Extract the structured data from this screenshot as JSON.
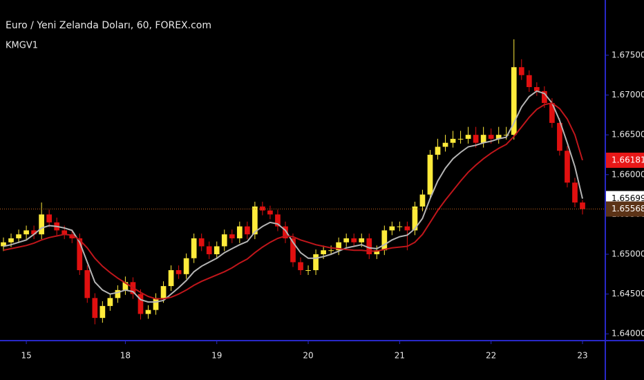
{
  "chart_data": {
    "type": "candlestick",
    "title": "Euro / Yeni Zelanda Doları, 60, FOREX.com",
    "indicator": "KMGV1",
    "categories": [
      null,
      null,
      null,
      "15",
      null,
      null,
      null,
      null,
      null,
      null,
      null,
      null,
      null,
      null,
      null,
      null,
      "18",
      null,
      null,
      null,
      null,
      null,
      null,
      null,
      null,
      null,
      null,
      null,
      "19",
      null,
      null,
      null,
      null,
      null,
      null,
      null,
      null,
      null,
      null,
      null,
      "20",
      null,
      null,
      null,
      null,
      null,
      null,
      null,
      null,
      null,
      null,
      null,
      "21",
      null,
      null,
      null,
      null,
      null,
      null,
      null,
      null,
      null,
      null,
      null,
      "22",
      null,
      null,
      null,
      null,
      null,
      null,
      null,
      null,
      null,
      null,
      null,
      "23"
    ],
    "open": [
      1.651,
      1.6515,
      1.652,
      1.6525,
      1.653,
      1.6525,
      1.655,
      1.654,
      1.653,
      1.6525,
      1.652,
      1.648,
      1.6445,
      1.642,
      1.6435,
      1.6445,
      1.6455,
      1.6465,
      1.645,
      1.6425,
      1.643,
      1.6445,
      1.646,
      1.648,
      1.6475,
      1.6495,
      1.652,
      1.651,
      1.65,
      1.651,
      1.6525,
      1.652,
      1.6535,
      1.6525,
      1.656,
      1.6555,
      1.655,
      1.6535,
      1.652,
      1.649,
      1.648,
      1.648,
      1.65,
      1.6505,
      1.6505,
      1.6515,
      1.652,
      1.6515,
      1.652,
      1.65,
      1.6505,
      1.653,
      1.6535,
      1.6535,
      1.653,
      1.656,
      1.6575,
      1.6625,
      1.6635,
      1.664,
      1.6645,
      1.6645,
      1.665,
      1.664,
      1.665,
      1.6645,
      1.665,
      1.665,
      1.6735,
      1.6725,
      1.671,
      1.6705,
      1.669,
      1.6665,
      1.663,
      1.659,
      1.6565
    ],
    "high": [
      1.6521,
      1.6526,
      1.6531,
      1.6536,
      1.6536,
      1.6565,
      1.6556,
      1.6546,
      1.6536,
      1.6531,
      1.6526,
      1.6486,
      1.6451,
      1.6441,
      1.6451,
      1.6461,
      1.6472,
      1.6471,
      1.6456,
      1.6436,
      1.6451,
      1.6466,
      1.6486,
      1.6486,
      1.6501,
      1.6526,
      1.6526,
      1.6516,
      1.6516,
      1.6531,
      1.6531,
      1.6541,
      1.6541,
      1.6566,
      1.6566,
      1.6561,
      1.6556,
      1.6541,
      1.6526,
      1.6496,
      1.6486,
      1.6506,
      1.6511,
      1.6511,
      1.6521,
      1.6526,
      1.6526,
      1.6526,
      1.6526,
      1.6511,
      1.6536,
      1.6541,
      1.6541,
      1.6541,
      1.6566,
      1.6581,
      1.6631,
      1.6645,
      1.665,
      1.6655,
      1.6655,
      1.666,
      1.666,
      1.666,
      1.6658,
      1.666,
      1.666,
      1.677,
      1.6745,
      1.6731,
      1.6716,
      1.6711,
      1.6696,
      1.6671,
      1.6636,
      1.6596,
      1.6568
    ],
    "low": [
      1.6504,
      1.6509,
      1.6514,
      1.6519,
      1.6519,
      1.6519,
      1.6534,
      1.6524,
      1.6519,
      1.6514,
      1.6474,
      1.6439,
      1.6412,
      1.6414,
      1.6429,
      1.6439,
      1.6449,
      1.6444,
      1.6418,
      1.6419,
      1.6424,
      1.6439,
      1.6454,
      1.6469,
      1.6469,
      1.6489,
      1.6504,
      1.6494,
      1.6494,
      1.6504,
      1.6514,
      1.6514,
      1.6519,
      1.6519,
      1.6549,
      1.6544,
      1.6529,
      1.6514,
      1.6484,
      1.6474,
      1.6474,
      1.6474,
      1.6494,
      1.6499,
      1.6499,
      1.6509,
      1.6509,
      1.6509,
      1.6494,
      1.6494,
      1.6499,
      1.6524,
      1.6529,
      1.6505,
      1.6524,
      1.6554,
      1.6569,
      1.6619,
      1.6629,
      1.6634,
      1.6639,
      1.6639,
      1.6634,
      1.6634,
      1.6639,
      1.6639,
      1.6644,
      1.6644,
      1.6719,
      1.6704,
      1.6699,
      1.6684,
      1.6659,
      1.6624,
      1.6584,
      1.6559,
      1.655
    ],
    "close": [
      1.6515,
      1.652,
      1.6525,
      1.653,
      1.6525,
      1.655,
      1.654,
      1.653,
      1.6525,
      1.652,
      1.648,
      1.6445,
      1.642,
      1.6435,
      1.6445,
      1.6455,
      1.6465,
      1.645,
      1.6425,
      1.643,
      1.6445,
      1.646,
      1.648,
      1.6475,
      1.6495,
      1.652,
      1.651,
      1.65,
      1.651,
      1.6525,
      1.652,
      1.6535,
      1.6525,
      1.656,
      1.6555,
      1.655,
      1.6535,
      1.652,
      1.649,
      1.648,
      1.648,
      1.65,
      1.6505,
      1.6505,
      1.6515,
      1.652,
      1.6515,
      1.652,
      1.65,
      1.6505,
      1.653,
      1.6535,
      1.6535,
      1.653,
      1.656,
      1.6575,
      1.6625,
      1.6635,
      1.664,
      1.6645,
      1.6645,
      1.665,
      1.664,
      1.665,
      1.6645,
      1.665,
      1.665,
      1.6735,
      1.6725,
      1.671,
      1.6705,
      1.669,
      1.6665,
      1.663,
      1.659,
      1.6565,
      1.65568
    ],
    "up_color": "#ffeb3b",
    "down_color": "#e01010",
    "last_price_color": "#5c3317",
    "series": [
      {
        "color": "#b5b5b5",
        "values": [
          1.651,
          1.6512,
          1.6515,
          1.6518,
          1.6525,
          1.6533,
          1.6536,
          1.6535,
          1.6533,
          1.653,
          1.6515,
          1.649,
          1.6465,
          1.6455,
          1.645,
          1.6452,
          1.6455,
          1.6453,
          1.6443,
          1.644,
          1.644,
          1.6442,
          1.645,
          1.6458,
          1.6467,
          1.6478,
          1.6485,
          1.649,
          1.6495,
          1.6502,
          1.6507,
          1.6512,
          1.6516,
          1.6528,
          1.6535,
          1.654,
          1.6538,
          1.653,
          1.6515,
          1.6502,
          1.6495,
          1.6495,
          1.6497,
          1.65,
          1.6504,
          1.6508,
          1.651,
          1.6512,
          1.6508,
          1.6507,
          1.6512,
          1.6518,
          1.6522,
          1.6524,
          1.6532,
          1.6545,
          1.657,
          1.6592,
          1.6608,
          1.662,
          1.6628,
          1.6635,
          1.6637,
          1.664,
          1.6642,
          1.6645,
          1.6647,
          1.6665,
          1.6685,
          1.6698,
          1.6705,
          1.6702,
          1.669,
          1.6668,
          1.664,
          1.661,
          1.65699
        ]
      },
      {
        "color": "#c0161b",
        "values": [
          1.6505,
          1.6507,
          1.6509,
          1.6511,
          1.6514,
          1.6518,
          1.6521,
          1.6523,
          1.6525,
          1.6524,
          1.6518,
          1.6508,
          1.6495,
          1.6485,
          1.6477,
          1.647,
          1.6464,
          1.6458,
          1.6452,
          1.6447,
          1.6444,
          1.6444,
          1.6446,
          1.645,
          1.6455,
          1.6461,
          1.6466,
          1.647,
          1.6474,
          1.6478,
          1.6483,
          1.6489,
          1.6494,
          1.6502,
          1.6509,
          1.6515,
          1.652,
          1.6523,
          1.6522,
          1.6518,
          1.6515,
          1.6512,
          1.651,
          1.6508,
          1.6507,
          1.6506,
          1.6505,
          1.6505,
          1.6504,
          1.6504,
          1.6506,
          1.6508,
          1.6509,
          1.651,
          1.6515,
          1.6525,
          1.654,
          1.6555,
          1.6568,
          1.658,
          1.6592,
          1.6603,
          1.6612,
          1.662,
          1.6627,
          1.6633,
          1.6638,
          1.6648,
          1.666,
          1.6672,
          1.6682,
          1.6688,
          1.669,
          1.6683,
          1.667,
          1.665,
          1.66181
        ]
      }
    ],
    "ylim": [
      1.63915,
      1.68194
    ],
    "yticks": [
      {
        "value": 1.64,
        "label": "1.64000"
      },
      {
        "value": 1.645,
        "label": "1.64500"
      },
      {
        "value": 1.65,
        "label": "1.65000"
      },
      {
        "value": 1.655,
        "label": "1.65500"
      },
      {
        "value": 1.66,
        "label": "1.66000"
      },
      {
        "value": 1.665,
        "label": "1.66500"
      },
      {
        "value": 1.67,
        "label": "1.67000"
      },
      {
        "value": 1.675,
        "label": "1.67500"
      }
    ]
  }
}
